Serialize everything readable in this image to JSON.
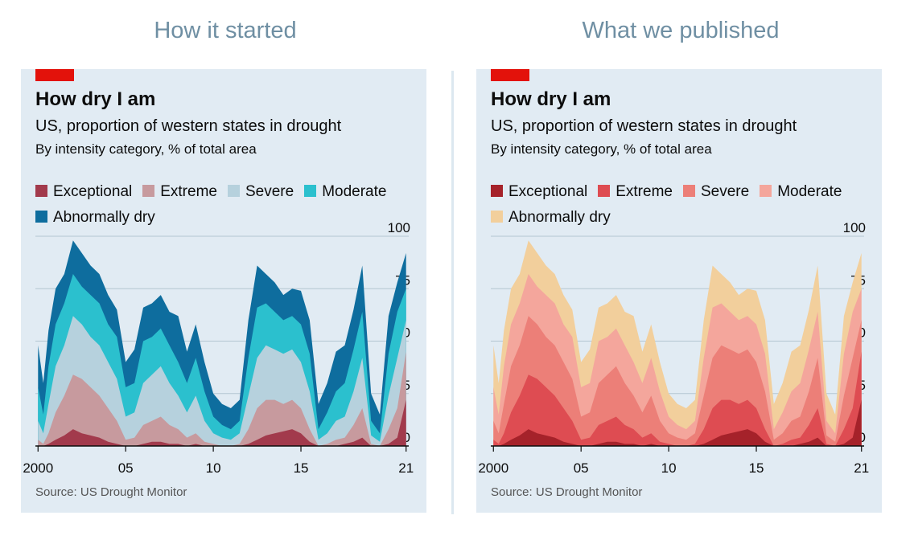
{
  "headings": {
    "left": "How it started",
    "right": "What we published"
  },
  "colors": {
    "tag": "#e3120b",
    "card": "#e1ebf3",
    "heading": "#6f8fa3"
  },
  "chart_data": [
    {
      "type": "area",
      "title": "How dry I am",
      "subtitle": "US, proportion of western states in drought",
      "caption": "By intensity category, % of total area",
      "source": "Source: US Drought Monitor",
      "ylim": [
        0,
        100
      ],
      "yticks": [
        "100",
        "75",
        "50",
        "25",
        "0"
      ],
      "xticks": [
        "2000",
        "05",
        "10",
        "15",
        "21"
      ],
      "xtick_years": [
        2000,
        2005,
        2010,
        2015,
        2021
      ],
      "xlim": [
        1999.85,
        2021.15
      ],
      "stacked": false,
      "grid": true,
      "legend_position": "top-left",
      "series": [
        {
          "name": "Abnormally dry",
          "color": "#0e6d9e",
          "x": [
            2000,
            2000.3,
            2000.6,
            2001,
            2001.5,
            2002,
            2002.5,
            2003,
            2003.5,
            2004,
            2004.5,
            2005,
            2005.5,
            2006,
            2006.5,
            2007,
            2007.5,
            2008,
            2008.5,
            2009,
            2009.5,
            2010,
            2010.5,
            2011,
            2011.5,
            2012,
            2012.5,
            2013,
            2013.5,
            2014,
            2014.5,
            2015,
            2015.5,
            2016,
            2016.5,
            2017,
            2017.5,
            2018,
            2018.5,
            2019,
            2019.5,
            2020,
            2020.5,
            2021
          ],
          "values": [
            48,
            30,
            55,
            75,
            82,
            98,
            92,
            86,
            82,
            72,
            65,
            40,
            46,
            66,
            68,
            72,
            64,
            62,
            45,
            58,
            40,
            25,
            20,
            18,
            22,
            60,
            86,
            82,
            78,
            72,
            75,
            74,
            60,
            20,
            30,
            45,
            48,
            65,
            86,
            25,
            15,
            62,
            78,
            92
          ]
        },
        {
          "name": "Moderate",
          "color": "#2bc0ce",
          "x": [
            2000,
            2000.3,
            2000.6,
            2001,
            2001.5,
            2002,
            2002.5,
            2003,
            2003.5,
            2004,
            2004.5,
            2005,
            2005.5,
            2006,
            2006.5,
            2007,
            2007.5,
            2008,
            2008.5,
            2009,
            2009.5,
            2010,
            2010.5,
            2011,
            2011.5,
            2012,
            2012.5,
            2013,
            2013.5,
            2014,
            2014.5,
            2015,
            2015.5,
            2016,
            2016.5,
            2017,
            2017.5,
            2018,
            2018.5,
            2019,
            2019.5,
            2020,
            2020.5,
            2021
          ],
          "values": [
            28,
            15,
            38,
            58,
            68,
            82,
            76,
            72,
            68,
            58,
            52,
            28,
            30,
            50,
            52,
            56,
            48,
            40,
            30,
            42,
            26,
            14,
            10,
            8,
            12,
            42,
            66,
            68,
            64,
            60,
            62,
            58,
            44,
            8,
            16,
            26,
            30,
            46,
            64,
            12,
            6,
            44,
            64,
            75
          ]
        },
        {
          "name": "Severe",
          "color": "#b6d1dd",
          "x": [
            2000,
            2000.3,
            2000.6,
            2001,
            2001.5,
            2002,
            2002.5,
            2003,
            2003.5,
            2004,
            2004.5,
            2005,
            2005.5,
            2006,
            2006.5,
            2007,
            2007.5,
            2008,
            2008.5,
            2009,
            2009.5,
            2010,
            2010.5,
            2011,
            2011.5,
            2012,
            2012.5,
            2013,
            2013.5,
            2014,
            2014.5,
            2015,
            2015.5,
            2016,
            2016.5,
            2017,
            2017.5,
            2018,
            2018.5,
            2019,
            2019.5,
            2020,
            2020.5,
            2021
          ],
          "values": [
            12,
            6,
            20,
            38,
            48,
            62,
            58,
            52,
            48,
            40,
            32,
            14,
            16,
            30,
            34,
            38,
            30,
            24,
            16,
            24,
            12,
            6,
            4,
            3,
            6,
            24,
            42,
            48,
            46,
            44,
            46,
            40,
            26,
            3,
            6,
            12,
            14,
            26,
            42,
            5,
            2,
            24,
            42,
            60
          ]
        },
        {
          "name": "Extreme",
          "color": "#c79a9e",
          "x": [
            2000,
            2000.3,
            2000.6,
            2001,
            2001.5,
            2002,
            2002.5,
            2003,
            2003.5,
            2004,
            2004.5,
            2005,
            2005.5,
            2006,
            2006.5,
            2007,
            2007.5,
            2008,
            2008.5,
            2009,
            2009.5,
            2010,
            2010.5,
            2011,
            2011.5,
            2012,
            2012.5,
            2013,
            2013.5,
            2014,
            2014.5,
            2015,
            2015.5,
            2016,
            2016.5,
            2017,
            2017.5,
            2018,
            2018.5,
            2019,
            2019.5,
            2020,
            2020.5,
            2021
          ],
          "values": [
            3,
            1,
            6,
            16,
            24,
            34,
            32,
            28,
            24,
            18,
            12,
            3,
            4,
            10,
            12,
            14,
            10,
            8,
            4,
            6,
            2,
            1,
            0,
            0,
            1,
            8,
            18,
            22,
            22,
            20,
            22,
            18,
            8,
            0,
            1,
            3,
            4,
            10,
            18,
            1,
            0,
            8,
            18,
            45
          ]
        },
        {
          "name": "Exceptional",
          "color": "#a23a4c",
          "x": [
            2000,
            2000.3,
            2000.6,
            2001,
            2001.5,
            2002,
            2002.5,
            2003,
            2003.5,
            2004,
            2004.5,
            2005,
            2005.5,
            2006,
            2006.5,
            2007,
            2007.5,
            2008,
            2008.5,
            2009,
            2009.5,
            2010,
            2010.5,
            2011,
            2011.5,
            2012,
            2012.5,
            2013,
            2013.5,
            2014,
            2014.5,
            2015,
            2015.5,
            2016,
            2016.5,
            2017,
            2017.5,
            2018,
            2018.5,
            2019,
            2019.5,
            2020,
            2020.5,
            2021
          ],
          "values": [
            0,
            0,
            1,
            3,
            5,
            8,
            6,
            5,
            4,
            2,
            1,
            0,
            0,
            1,
            2,
            2,
            1,
            1,
            0,
            1,
            0,
            0,
            0,
            0,
            0,
            1,
            3,
            5,
            6,
            7,
            8,
            6,
            2,
            0,
            0,
            0,
            1,
            2,
            4,
            0,
            0,
            1,
            4,
            22
          ]
        }
      ],
      "legend": [
        {
          "name": "Exceptional",
          "color": "#a23a4c"
        },
        {
          "name": "Extreme",
          "color": "#c79a9e"
        },
        {
          "name": "Severe",
          "color": "#b6d1dd"
        },
        {
          "name": "Moderate",
          "color": "#2bc0ce"
        },
        {
          "name": "Abnormally dry",
          "color": "#0e6d9e"
        }
      ]
    },
    {
      "type": "area",
      "title": "How dry I am",
      "subtitle": "US, proportion of western states in drought",
      "caption": "By intensity category, % of total area",
      "source": "Source: US Drought Monitor",
      "ylim": [
        0,
        100
      ],
      "yticks": [
        "100",
        "75",
        "50",
        "25",
        "0"
      ],
      "xticks": [
        "2000",
        "05",
        "10",
        "15",
        "21"
      ],
      "xtick_years": [
        2000,
        2005,
        2010,
        2015,
        2021
      ],
      "xlim": [
        1999.85,
        2021.15
      ],
      "stacked": false,
      "grid": true,
      "legend_position": "top-left",
      "series": [
        {
          "name": "Abnormally dry",
          "color": "#f2cf9c",
          "x": [
            2000,
            2000.3,
            2000.6,
            2001,
            2001.5,
            2002,
            2002.5,
            2003,
            2003.5,
            2004,
            2004.5,
            2005,
            2005.5,
            2006,
            2006.5,
            2007,
            2007.5,
            2008,
            2008.5,
            2009,
            2009.5,
            2010,
            2010.5,
            2011,
            2011.5,
            2012,
            2012.5,
            2013,
            2013.5,
            2014,
            2014.5,
            2015,
            2015.5,
            2016,
            2016.5,
            2017,
            2017.5,
            2018,
            2018.5,
            2019,
            2019.5,
            2020,
            2020.5,
            2021
          ],
          "values": [
            48,
            30,
            55,
            75,
            82,
            98,
            92,
            86,
            82,
            72,
            65,
            40,
            46,
            66,
            68,
            72,
            64,
            62,
            45,
            58,
            40,
            25,
            20,
            18,
            22,
            60,
            86,
            82,
            78,
            72,
            75,
            74,
            60,
            20,
            30,
            45,
            48,
            65,
            86,
            25,
            15,
            62,
            78,
            92
          ]
        },
        {
          "name": "Moderate",
          "color": "#f4a69c",
          "x": [
            2000,
            2000.3,
            2000.6,
            2001,
            2001.5,
            2002,
            2002.5,
            2003,
            2003.5,
            2004,
            2004.5,
            2005,
            2005.5,
            2006,
            2006.5,
            2007,
            2007.5,
            2008,
            2008.5,
            2009,
            2009.5,
            2010,
            2010.5,
            2011,
            2011.5,
            2012,
            2012.5,
            2013,
            2013.5,
            2014,
            2014.5,
            2015,
            2015.5,
            2016,
            2016.5,
            2017,
            2017.5,
            2018,
            2018.5,
            2019,
            2019.5,
            2020,
            2020.5,
            2021
          ],
          "values": [
            28,
            15,
            38,
            58,
            68,
            82,
            76,
            72,
            68,
            58,
            52,
            28,
            30,
            50,
            52,
            56,
            48,
            40,
            30,
            42,
            26,
            14,
            10,
            8,
            12,
            42,
            66,
            68,
            64,
            60,
            62,
            58,
            44,
            8,
            16,
            26,
            30,
            46,
            64,
            12,
            6,
            44,
            64,
            75
          ]
        },
        {
          "name": "Severe",
          "color": "#ec7f78",
          "x": [
            2000,
            2000.3,
            2000.6,
            2001,
            2001.5,
            2002,
            2002.5,
            2003,
            2003.5,
            2004,
            2004.5,
            2005,
            2005.5,
            2006,
            2006.5,
            2007,
            2007.5,
            2008,
            2008.5,
            2009,
            2009.5,
            2010,
            2010.5,
            2011,
            2011.5,
            2012,
            2012.5,
            2013,
            2013.5,
            2014,
            2014.5,
            2015,
            2015.5,
            2016,
            2016.5,
            2017,
            2017.5,
            2018,
            2018.5,
            2019,
            2019.5,
            2020,
            2020.5,
            2021
          ],
          "values": [
            12,
            6,
            20,
            38,
            48,
            62,
            58,
            52,
            48,
            40,
            32,
            14,
            16,
            30,
            34,
            38,
            30,
            24,
            16,
            24,
            12,
            6,
            4,
            3,
            6,
            24,
            42,
            48,
            46,
            44,
            46,
            40,
            26,
            3,
            6,
            12,
            14,
            26,
            42,
            5,
            2,
            24,
            42,
            60
          ]
        },
        {
          "name": "Extreme",
          "color": "#de4c52",
          "x": [
            2000,
            2000.3,
            2000.6,
            2001,
            2001.5,
            2002,
            2002.5,
            2003,
            2003.5,
            2004,
            2004.5,
            2005,
            2005.5,
            2006,
            2006.5,
            2007,
            2007.5,
            2008,
            2008.5,
            2009,
            2009.5,
            2010,
            2010.5,
            2011,
            2011.5,
            2012,
            2012.5,
            2013,
            2013.5,
            2014,
            2014.5,
            2015,
            2015.5,
            2016,
            2016.5,
            2017,
            2017.5,
            2018,
            2018.5,
            2019,
            2019.5,
            2020,
            2020.5,
            2021
          ],
          "values": [
            3,
            1,
            6,
            16,
            24,
            34,
            32,
            28,
            24,
            18,
            12,
            3,
            4,
            10,
            12,
            14,
            10,
            8,
            4,
            6,
            2,
            1,
            0,
            0,
            1,
            8,
            18,
            22,
            22,
            20,
            22,
            18,
            8,
            0,
            1,
            3,
            4,
            10,
            18,
            1,
            0,
            8,
            18,
            45
          ]
        },
        {
          "name": "Exceptional",
          "color": "#a5222a",
          "x": [
            2000,
            2000.3,
            2000.6,
            2001,
            2001.5,
            2002,
            2002.5,
            2003,
            2003.5,
            2004,
            2004.5,
            2005,
            2005.5,
            2006,
            2006.5,
            2007,
            2007.5,
            2008,
            2008.5,
            2009,
            2009.5,
            2010,
            2010.5,
            2011,
            2011.5,
            2012,
            2012.5,
            2013,
            2013.5,
            2014,
            2014.5,
            2015,
            2015.5,
            2016,
            2016.5,
            2017,
            2017.5,
            2018,
            2018.5,
            2019,
            2019.5,
            2020,
            2020.5,
            2021
          ],
          "values": [
            0,
            0,
            1,
            3,
            5,
            8,
            6,
            5,
            4,
            2,
            1,
            0,
            0,
            1,
            2,
            2,
            1,
            1,
            0,
            1,
            0,
            0,
            0,
            0,
            0,
            1,
            3,
            5,
            6,
            7,
            8,
            6,
            2,
            0,
            0,
            0,
            1,
            2,
            4,
            0,
            0,
            1,
            4,
            22
          ]
        }
      ],
      "legend": [
        {
          "name": "Exceptional",
          "color": "#a5222a"
        },
        {
          "name": "Extreme",
          "color": "#de4c52"
        },
        {
          "name": "Severe",
          "color": "#ec7f78"
        },
        {
          "name": "Moderate",
          "color": "#f4a69c"
        },
        {
          "name": "Abnormally dry",
          "color": "#f2cf9c"
        }
      ]
    }
  ]
}
